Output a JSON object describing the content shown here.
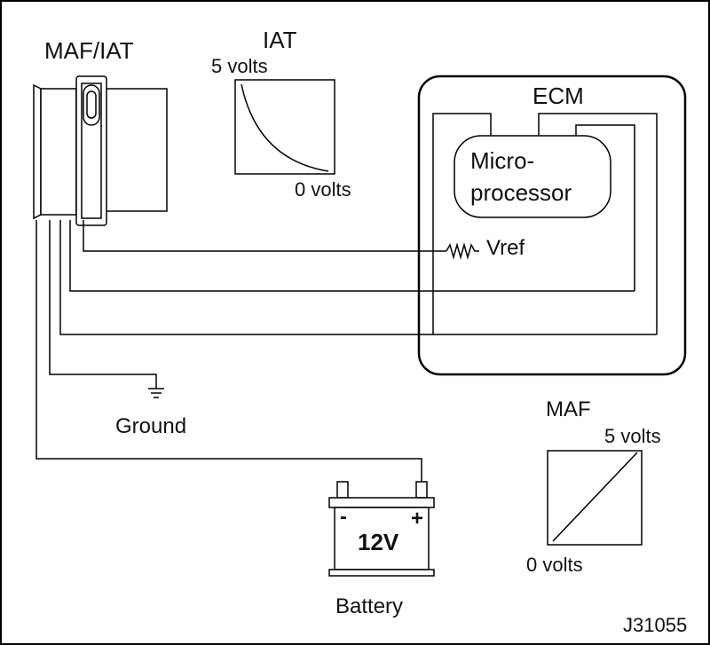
{
  "labels": {
    "maf_iat": "MAF/IAT",
    "iat_title": "IAT",
    "iat_high": "5 volts",
    "iat_low": "0 volts",
    "ecm": "ECM",
    "micro_line1": "Micro-",
    "micro_line2": "processor",
    "vref": "Vref",
    "ground": "Ground",
    "maf_title": "MAF",
    "maf_high": "5 volts",
    "maf_low": "0 volts",
    "battery_minus": "-",
    "battery_plus": "+",
    "battery_voltage": "12V",
    "battery": "Battery",
    "figure_id": "J31055"
  }
}
